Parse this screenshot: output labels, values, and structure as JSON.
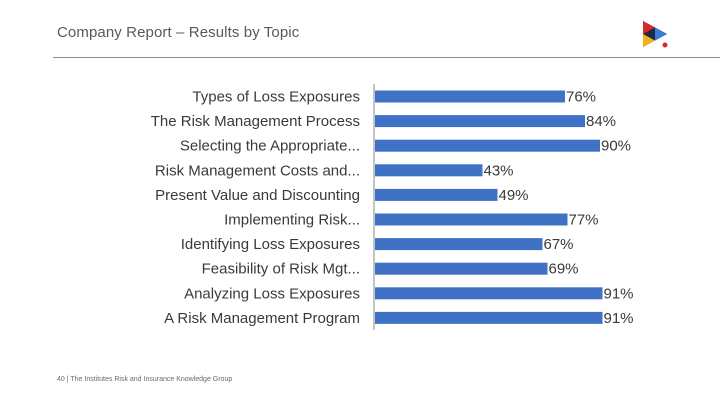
{
  "header": {
    "title": "Company Report – Results by Topic"
  },
  "footer": {
    "text": "40 | The Institutes Risk and Insurance Knowledge Group"
  },
  "colors": {
    "bar": "#3f72c4",
    "rule": "#8a8f96",
    "logo_dark": "#1f2a44",
    "logo_red": "#d9272e",
    "logo_yellow": "#f2b31b",
    "logo_blue": "#3a7bd5"
  },
  "icons": {
    "logo": "institutes-logo-icon"
  },
  "chart_data": {
    "type": "bar",
    "orientation": "horizontal",
    "categories": [
      "Types of Loss Exposures",
      "The Risk Management Process",
      "Selecting the Appropriate...",
      "Risk Management Costs and...",
      "Present Value and Discounting",
      "Implementing Risk...",
      "Identifying Loss Exposures",
      "Feasibility of Risk Mgt...",
      "Analyzing Loss Exposures",
      "A Risk Management Program"
    ],
    "values": [
      76,
      84,
      90,
      43,
      49,
      77,
      67,
      69,
      91,
      91
    ],
    "value_labels": [
      "76%",
      "84%",
      "90%",
      "43%",
      "49%",
      "77%",
      "67%",
      "69%",
      "91%",
      "91%"
    ],
    "value_unit": "%",
    "xlim": [
      0,
      100
    ],
    "grid": false,
    "legend": "none",
    "title": "",
    "xlabel": "",
    "ylabel": ""
  }
}
